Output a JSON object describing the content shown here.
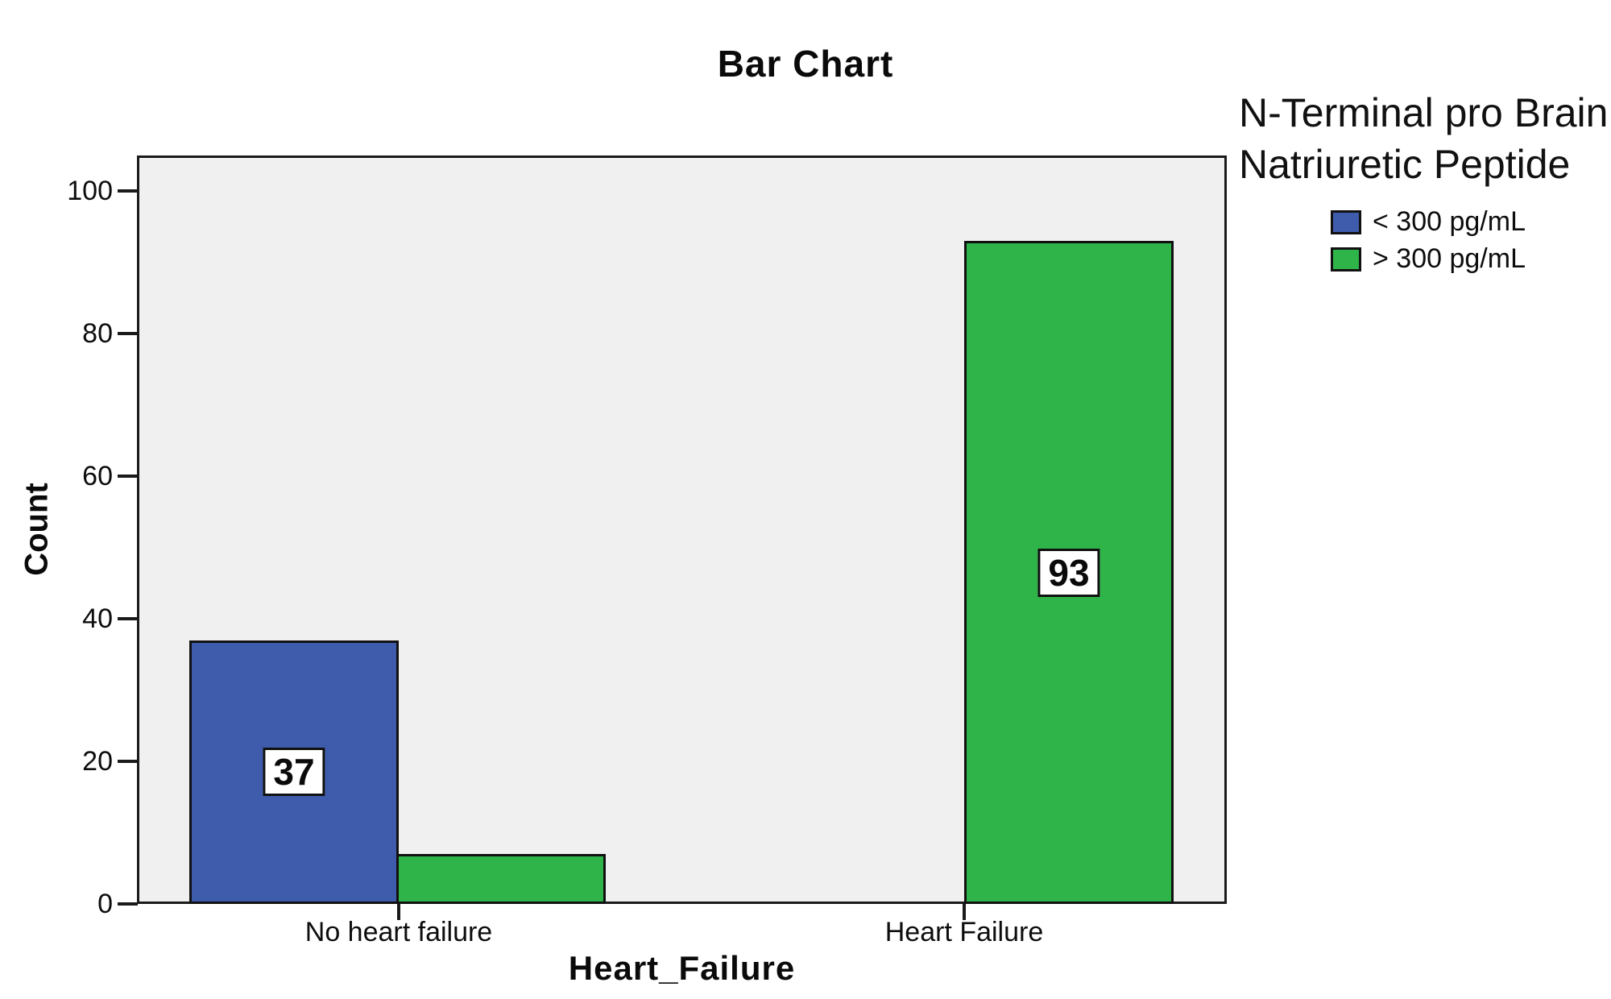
{
  "chart_data": {
    "type": "bar",
    "title": "Bar Chart",
    "xlabel": "Heart_Failure",
    "ylabel": "Count",
    "categories": [
      "No heart failure",
      "Heart Failure"
    ],
    "series": [
      {
        "name": "< 300 pg/mL",
        "color": "#3E5BAC",
        "values": [
          37,
          0
        ]
      },
      {
        "name": "> 300 pg/mL",
        "color": "#2FB44A",
        "values": [
          7,
          93
        ]
      }
    ],
    "bar_value_labels": [
      [
        37,
        null
      ],
      [
        7,
        93
      ]
    ],
    "yticks": [
      0,
      20,
      40,
      60,
      80,
      100
    ],
    "ylim": [
      0,
      105
    ],
    "grid": false,
    "plot_background": "#F0F0F0",
    "legend_position": "top-right",
    "legend_title": "N-Terminal pro Brain\nNatriuretic Peptide"
  }
}
